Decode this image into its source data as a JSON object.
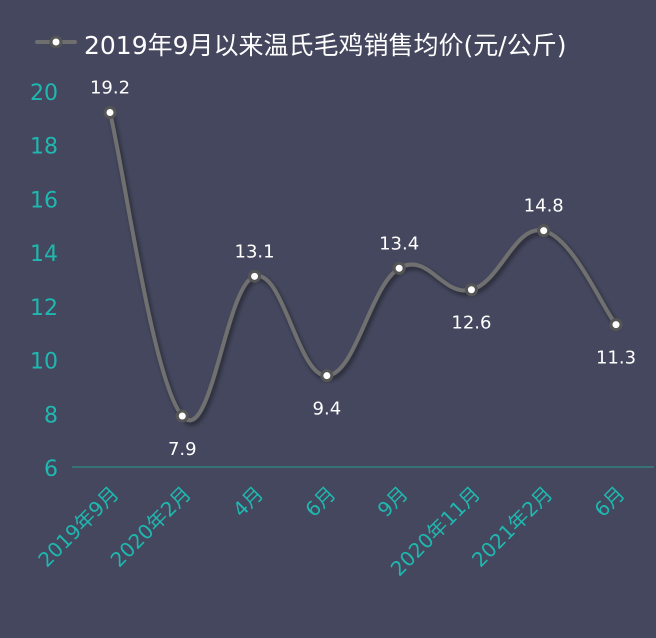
{
  "chart_data": {
    "type": "line",
    "legend": "2019年9月以来温氏毛鸡销售均价(元/公斤)",
    "legend_placement": "top",
    "categories": [
      "2019年9月",
      "2020年2月",
      "4月",
      "6月",
      "9月",
      "2020年11月",
      "2021年2月",
      "6月"
    ],
    "series": [
      {
        "name": "2019年9月以来温氏毛鸡销售均价(元/公斤)",
        "values": [
          19.2,
          7.9,
          13.1,
          9.4,
          13.4,
          12.6,
          14.8,
          11.3
        ],
        "value_labels": [
          "19.2",
          "7.9",
          "13.1",
          "9.4",
          "13.4",
          "12.6",
          "14.8",
          "11.3"
        ]
      }
    ],
    "yticks": [
      "6",
      "8",
      "10",
      "12",
      "14",
      "16",
      "18",
      "20"
    ],
    "ylim": [
      6,
      20
    ],
    "grid": false,
    "smooth": true,
    "colors": {
      "background": "#44475d",
      "line": "#6f6f6f",
      "marker_fill": "#ffffff",
      "tick_text": "#1fb8b0",
      "axis_line": "#2e8b88",
      "label_text": "#ffffff"
    }
  }
}
